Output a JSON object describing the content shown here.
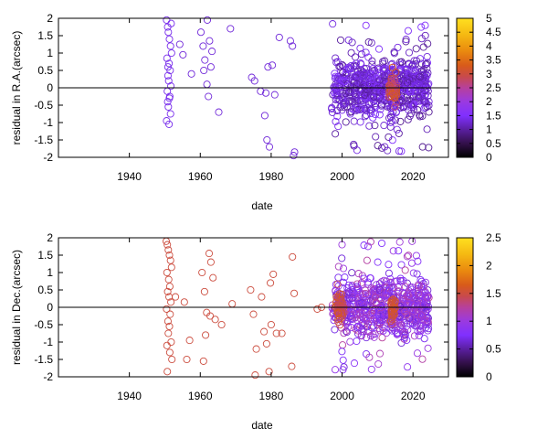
{
  "chart_data": [
    {
      "type": "scatter",
      "xlabel": "date",
      "ylabel": "residual in R.A.(arcsec)",
      "xlim": [
        1920,
        2030
      ],
      "ylim": [
        -2,
        2
      ],
      "x_ticks": [
        1940,
        1960,
        1980,
        2000,
        2020
      ],
      "y_ticks": [
        -2,
        -1.5,
        -1,
        -0.5,
        0,
        0.5,
        1,
        1.5,
        2
      ],
      "y_tick_labels": [
        "-2",
        "-1.5",
        "-1",
        "-0.5",
        "0",
        "0.5",
        "1",
        "1.5",
        "2"
      ],
      "colorbar": {
        "range": [
          0,
          5
        ],
        "ticks": [
          0,
          0.5,
          1,
          1.5,
          2,
          2.5,
          3,
          3.5,
          4,
          4.5,
          5
        ],
        "tick_labels": [
          "0",
          "0.5",
          "1",
          "1.5",
          "2",
          "2.5",
          "3",
          "3.5",
          "4",
          "4.5",
          "5"
        ]
      },
      "zero_line": true,
      "marker": "open circle",
      "groups": [
        {
          "x": [
            1950.5,
            1950.8,
            1951.0,
            1951.3,
            1951.6,
            1951.9,
            1950.6,
            1951.2,
            1951.5,
            1950.9,
            1951.1,
            1951.7,
            1950.7,
            1951.4,
            1950.8,
            1951.0,
            1951.6,
            1950.5,
            1951.2,
            1951.8,
            1950.9,
            1951.3
          ],
          "y": [
            1.95,
            1.75,
            1.6,
            1.4,
            1.2,
            1.0,
            0.85,
            0.7,
            0.5,
            0.35,
            0.2,
            0.05,
            -0.1,
            -0.25,
            -0.4,
            -0.55,
            -0.75,
            -0.95,
            -1.05,
            1.85,
            0.6,
            -0.3
          ],
          "c": 1.4
        },
        {
          "x": [
            1954.2,
            1955.1,
            1957.5,
            1960.2,
            1960.8,
            1961.3,
            1962.0,
            1962.6,
            1963.3,
            1961.9,
            1962.3,
            1965.2,
            1968.5,
            1961.0,
            1963.0
          ],
          "y": [
            1.25,
            0.95,
            0.4,
            1.6,
            1.2,
            0.8,
            1.95,
            1.35,
            1.05,
            0.1,
            -0.25,
            -0.7,
            1.7,
            0.5,
            0.6
          ],
          "c": 1.3
        },
        {
          "x": [
            1974.5,
            1975.3,
            1977.0,
            1978.2,
            1978.8,
            1979.5,
            1980.3,
            1981.0,
            1982.3,
            1985.4,
            1986.0,
            1986.6,
            1979.1,
            1986.3,
            1978.5
          ],
          "y": [
            0.3,
            0.2,
            -0.1,
            -0.8,
            -1.5,
            -1.7,
            0.65,
            -0.2,
            1.45,
            1.35,
            1.2,
            -1.85,
            0.6,
            -1.95,
            -0.15
          ],
          "c": 1.3
        },
        {
          "generate": "cluster",
          "x_range": [
            1997,
            2024.5
          ],
          "n": 720,
          "spread": 0.55,
          "tail": 1.9,
          "c_range": [
            0.9,
            1.6
          ],
          "seed": 11
        },
        {
          "generate": "cluster",
          "x_range": [
            2013,
            2015.5
          ],
          "n": 45,
          "spread": 0.3,
          "tail": 0.6,
          "c_range": [
            2.6,
            3.3
          ],
          "seed": 23
        }
      ]
    },
    {
      "type": "scatter",
      "xlabel": "date",
      "ylabel": "residual in Dec.(arcsec)",
      "xlim": [
        1920,
        2030
      ],
      "ylim": [
        -2,
        2
      ],
      "x_ticks": [
        1940,
        1960,
        1980,
        2000,
        2020
      ],
      "y_ticks": [
        -2,
        -1.5,
        -1,
        -0.5,
        0,
        0.5,
        1,
        1.5,
        2
      ],
      "y_tick_labels": [
        "-2",
        "-1.5",
        "-1",
        "-0.5",
        "0",
        "0.5",
        "1",
        "1.5",
        "2"
      ],
      "colorbar": {
        "range": [
          0,
          2.5
        ],
        "ticks": [
          0,
          0.5,
          1,
          1.5,
          2,
          2.5
        ],
        "tick_labels": [
          "0",
          "0.5",
          "1",
          "1.5",
          "2",
          "2.5"
        ]
      },
      "zero_line": true,
      "marker": "open circle",
      "groups": [
        {
          "x": [
            1950.4,
            1950.7,
            1951.0,
            1951.3,
            1951.6,
            1951.9,
            1950.6,
            1951.1,
            1951.4,
            1950.8,
            1951.2,
            1951.7,
            1950.5,
            1951.5,
            1950.9,
            1951.3,
            1951.0,
            1951.8,
            1950.6,
            1951.4,
            1952.0,
            1950.7
          ],
          "y": [
            1.9,
            1.8,
            1.65,
            1.5,
            1.35,
            1.15,
            1.0,
            0.8,
            0.6,
            0.45,
            0.3,
            0.15,
            -0.05,
            -0.2,
            -0.4,
            -0.55,
            -0.75,
            -1.0,
            -1.1,
            -1.3,
            -1.5,
            -1.85
          ],
          "c": 1.5
        },
        {
          "x": [
            1953.0,
            1955.5,
            1956.2,
            1957.0,
            1960.5,
            1961.2,
            1961.8,
            1962.5,
            1963.0,
            1963.6,
            1964.2,
            1966.0,
            1969.0,
            1961.5,
            1962.8,
            1960.9
          ],
          "y": [
            0.3,
            0.15,
            -1.5,
            -0.95,
            1.0,
            0.45,
            -0.15,
            1.55,
            1.3,
            0.85,
            -0.35,
            -0.5,
            0.1,
            -0.8,
            -0.25,
            -1.55
          ],
          "c": 1.5
        },
        {
          "x": [
            1974.2,
            1975.0,
            1975.8,
            1977.3,
            1978.0,
            1978.7,
            1979.4,
            1980.0,
            1980.6,
            1981.5,
            1983.0,
            1986.0,
            1986.5,
            1975.5,
            1979.8,
            1985.8
          ],
          "y": [
            0.5,
            -0.2,
            -1.2,
            0.3,
            -0.7,
            -1.05,
            -1.85,
            -0.5,
            0.95,
            -0.75,
            -0.75,
            1.45,
            0.4,
            -1.95,
            0.7,
            -1.7
          ],
          "c": 1.5
        },
        {
          "x": [
            1993.0,
            1994.2
          ],
          "y": [
            -0.05,
            0.0
          ],
          "c": 1.5
        },
        {
          "generate": "cluster",
          "x_range": [
            1997,
            2024.5
          ],
          "n": 680,
          "spread": 0.55,
          "tail": 1.9,
          "c_range": [
            0.6,
            1.25
          ],
          "seed": 37
        },
        {
          "generate": "cluster",
          "x_range": [
            1998,
            2000.5
          ],
          "n": 45,
          "spread": 0.35,
          "tail": 0.5,
          "c_range": [
            1.35,
            1.65
          ],
          "seed": 41
        },
        {
          "generate": "cluster",
          "x_range": [
            2013.5,
            2015.0
          ],
          "n": 30,
          "spread": 0.3,
          "tail": 0.4,
          "c_range": [
            1.4,
            1.6
          ],
          "seed": 53
        }
      ]
    }
  ]
}
